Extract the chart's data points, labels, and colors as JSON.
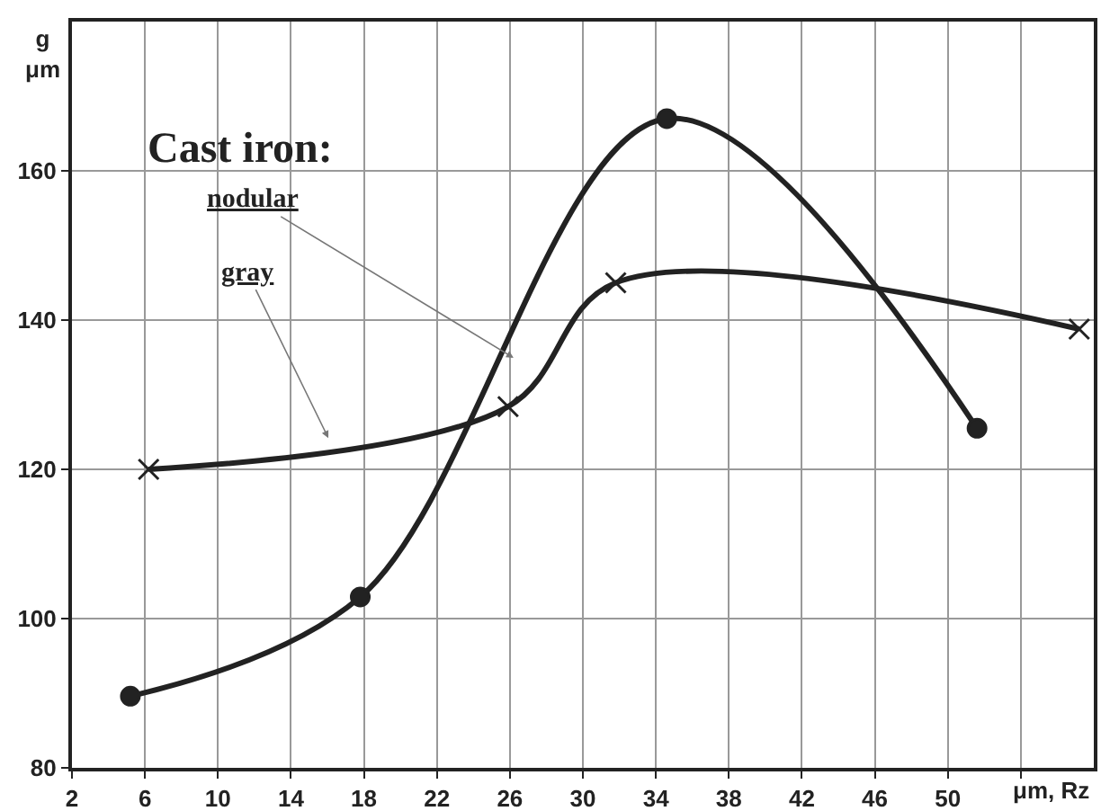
{
  "chart_data": {
    "type": "line",
    "xlabel": "μm, Rz",
    "ylabel": "g\nμm",
    "xlim": [
      2,
      58
    ],
    "xticks": [
      2,
      6,
      10,
      14,
      18,
      22,
      26,
      30,
      34,
      38,
      42,
      46,
      50,
      {
        "value": 54,
        "label": null
      }
    ],
    "ylim": [
      80,
      180
    ],
    "yticks": [
      80,
      100,
      120,
      140,
      160
    ],
    "grid": true,
    "line_style": "solid",
    "annotations": [
      "Cast iron:",
      "nodular",
      "gray"
    ],
    "series": [
      {
        "color": "#222222",
        "marker": "circle",
        "x": [
          5.2,
          17.8,
          34.6,
          51.6
        ],
        "values": [
          89.6,
          102.9,
          167,
          125.5
        ]
      },
      {
        "color": "#222222",
        "marker": "cross",
        "x": [
          6.2,
          25.9,
          31.8,
          57.2
        ],
        "values": [
          120,
          128.4,
          145,
          138.8
        ]
      }
    ]
  }
}
